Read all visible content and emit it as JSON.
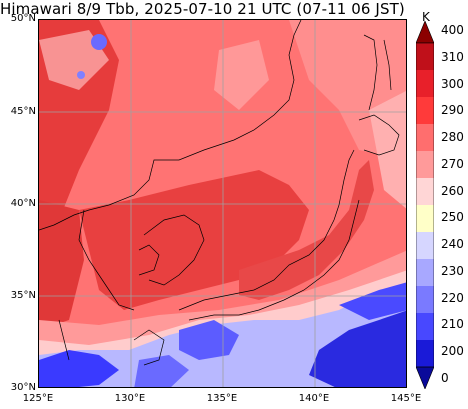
{
  "title": "Himawari 8/9 Tbb, 2025-07-10 21 UTC (07-11 06 JST)",
  "lat_labels": [
    "50°N",
    "45°N",
    "40°N",
    "35°N",
    "30°N"
  ],
  "lon_labels": [
    "125°E",
    "130°E",
    "135°E",
    "140°E",
    "145°E"
  ],
  "colorbar": {
    "unit": "K",
    "labels": [
      "400",
      "310",
      "300",
      "290",
      "280",
      "270",
      "260",
      "250",
      "240",
      "230",
      "220",
      "210",
      "200",
      "0"
    ],
    "colors": [
      "#8b0000",
      "#c0101a",
      "#e8202a",
      "#ff3a3a",
      "#ff6e6e",
      "#ff9a9a",
      "#ffd6d6",
      "#ffffc8",
      "#d6d6ff",
      "#a8a8ff",
      "#7a7aff",
      "#4848ff",
      "#1a1ad8",
      "#0a0a9a"
    ]
  },
  "map_colors": {
    "land_warm": "#e84545",
    "sea_base": "#ff7878",
    "sea_light": "#ff9c9c",
    "cloud_pink": "#ffcaca",
    "cloud_white": "#fff0f0",
    "cold_blue": "#7a7aff",
    "cold_dark": "#2a2ae0",
    "grid": "#a0a0a0",
    "coast": "#000000"
  }
}
